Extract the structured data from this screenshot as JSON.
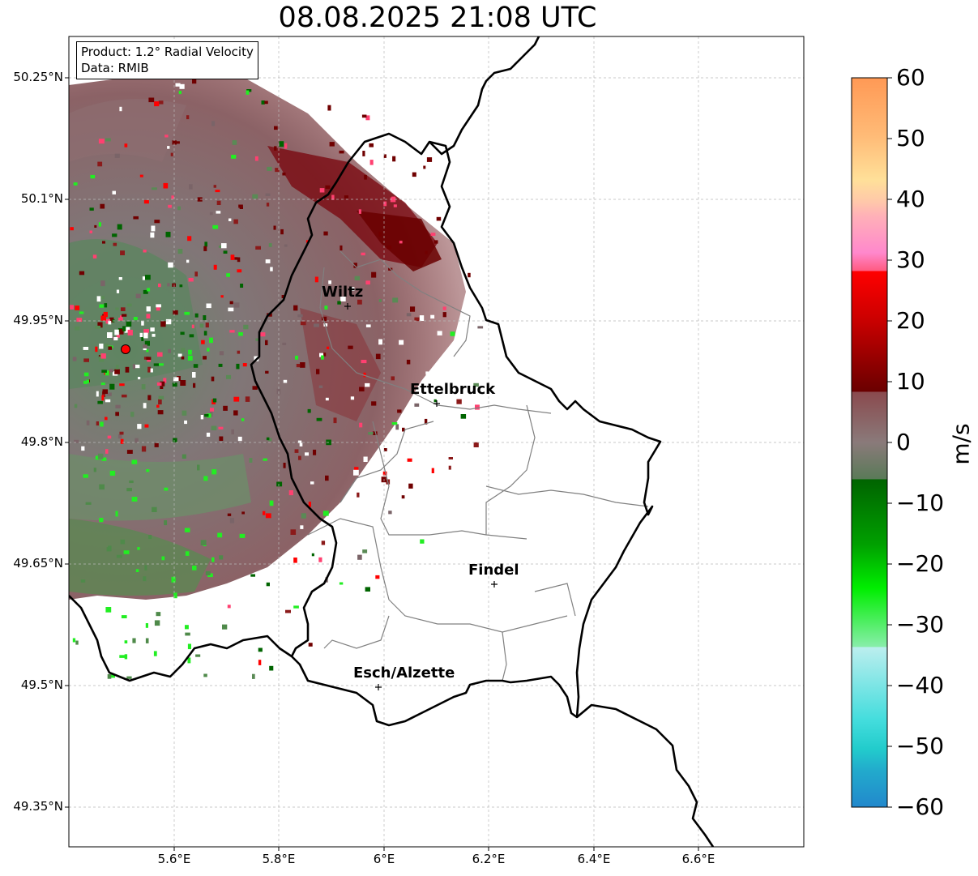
{
  "title": "08.08.2025 21:08 UTC",
  "info": {
    "product": "Product: 1.2° Radial Velocity",
    "source": "Data: RMIB"
  },
  "lat_ticks": [
    "50.25°N",
    "50.1°N",
    "49.95°N",
    "49.8°N",
    "49.65°N",
    "49.5°N",
    "49.35°N"
  ],
  "lon_ticks": [
    "5.6°E",
    "5.8°E",
    "6°E",
    "6.2°E",
    "6.4°E",
    "6.6°E"
  ],
  "cities": [
    {
      "name": "Wiltz"
    },
    {
      "name": "Ettelbruck"
    },
    {
      "name": "Findel"
    },
    {
      "name": "Esch/Alzette"
    }
  ],
  "colorbar": {
    "unit": "m/s",
    "min": -60,
    "max": 60,
    "ticks": [
      "60",
      "50",
      "40",
      "30",
      "20",
      "10",
      "0",
      "−10",
      "−20",
      "−30",
      "−40",
      "−50",
      "−60"
    ]
  },
  "colors": {
    "approaching_dark": "#006400",
    "approaching_light": "#22ee22",
    "zero_band": "#8a7a7a",
    "receding_dark": "#700000",
    "receding_bright": "#ff0000",
    "border": "#000000",
    "admin_border": "#808080",
    "radar_site": "#ff0000"
  }
}
